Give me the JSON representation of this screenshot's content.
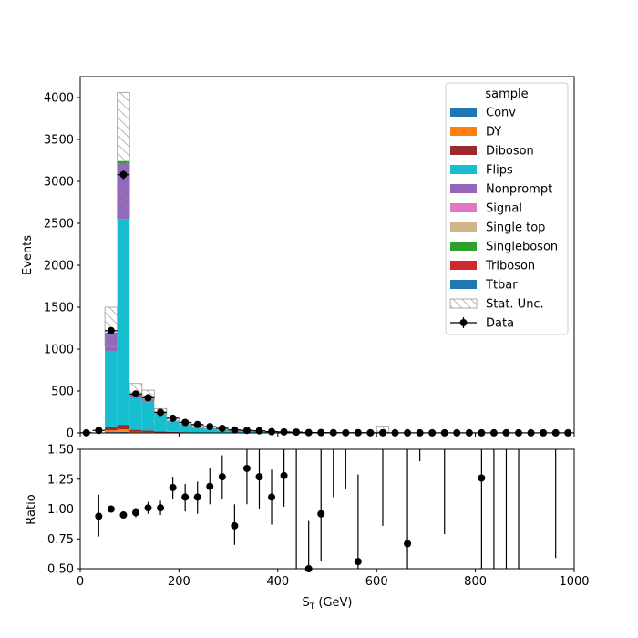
{
  "chart_data": [
    {
      "type": "bar",
      "stacked": true,
      "ylabel": "Events",
      "xlim": [
        0,
        1000
      ],
      "ylim": [
        0,
        4250
      ],
      "y_ticks": [
        0,
        500,
        1000,
        1500,
        2000,
        2500,
        3000,
        3500,
        4000
      ],
      "bin_edges": [
        0,
        25,
        50,
        75,
        100,
        125,
        150,
        175,
        200,
        225,
        250,
        275,
        300,
        325,
        350,
        375,
        400,
        425,
        450,
        475,
        500,
        525,
        550,
        575,
        600,
        625,
        650,
        675,
        700,
        725,
        750,
        775,
        800,
        825,
        850,
        875,
        900,
        925,
        950,
        975,
        1000
      ],
      "legend": {
        "title": "sample",
        "placement": "upper right",
        "entries": [
          "Conv",
          "DY",
          "Diboson",
          "Flips",
          "Nonprompt",
          "Signal",
          "Single top",
          "Singleboson",
          "Triboson",
          "Ttbar",
          "Stat. Unc.",
          "Data"
        ]
      },
      "series": [
        {
          "name": "Conv",
          "color": "#1f77b4",
          "values": [
            0,
            0,
            10,
            12,
            4,
            3,
            2,
            1,
            1,
            0,
            0,
            0,
            0,
            0,
            0,
            0,
            0,
            0,
            0,
            0,
            0,
            0,
            0,
            0,
            0,
            0,
            0,
            0,
            0,
            0,
            0,
            0,
            0,
            0,
            0,
            0,
            0,
            0,
            0,
            0
          ]
        },
        {
          "name": "DY",
          "color": "#ff7f0e",
          "values": [
            0,
            0,
            20,
            30,
            8,
            5,
            3,
            2,
            1,
            1,
            0,
            0,
            0,
            0,
            0,
            0,
            0,
            0,
            0,
            0,
            0,
            0,
            0,
            0,
            0,
            0,
            0,
            0,
            0,
            0,
            0,
            0,
            0,
            0,
            0,
            0,
            0,
            0,
            0,
            0
          ]
        },
        {
          "name": "Diboson",
          "color": "#9e2a2b",
          "values": [
            0,
            0,
            40,
            55,
            25,
            20,
            14,
            10,
            7,
            5,
            4,
            3,
            2,
            2,
            1,
            1,
            1,
            1,
            0,
            0,
            0,
            0,
            0,
            0,
            0,
            0,
            0,
            0,
            0,
            0,
            0,
            0,
            0,
            0,
            0,
            0,
            0,
            0,
            0,
            0
          ]
        },
        {
          "name": "Flips",
          "color": "#17becf",
          "values": [
            0,
            0,
            900,
            2450,
            380,
            340,
            215,
            120,
            85,
            65,
            45,
            35,
            25,
            20,
            15,
            10,
            8,
            6,
            5,
            4,
            3,
            3,
            2,
            2,
            2,
            1,
            1,
            1,
            1,
            1,
            0,
            0,
            0,
            0,
            0,
            0,
            0,
            0,
            0,
            0
          ]
        },
        {
          "name": "Nonprompt",
          "color": "#9467bd",
          "values": [
            0,
            0,
            220,
            670,
            45,
            40,
            20,
            12,
            8,
            5,
            3,
            2,
            2,
            1,
            1,
            1,
            0,
            0,
            0,
            0,
            0,
            0,
            0,
            0,
            0,
            0,
            0,
            0,
            0,
            0,
            0,
            0,
            0,
            0,
            0,
            0,
            0,
            0,
            0,
            0
          ]
        },
        {
          "name": "Signal",
          "color": "#e377c2",
          "values": [
            0,
            0,
            0,
            0,
            0,
            0,
            0,
            0,
            0,
            0,
            0,
            0,
            0,
            0,
            0,
            0,
            0,
            0,
            0,
            0,
            0,
            0,
            0,
            0,
            0,
            0,
            0,
            0,
            0,
            0,
            0,
            0,
            0,
            0,
            0,
            0,
            0,
            0,
            0,
            0
          ]
        },
        {
          "name": "Single top",
          "color": "#d2b48c",
          "values": [
            0,
            0,
            0,
            0,
            0,
            0,
            0,
            0,
            0,
            0,
            0,
            0,
            0,
            0,
            0,
            0,
            0,
            0,
            0,
            0,
            0,
            0,
            0,
            0,
            0,
            0,
            0,
            0,
            0,
            0,
            0,
            0,
            0,
            0,
            0,
            0,
            0,
            0,
            0,
            0
          ]
        },
        {
          "name": "Singleboson",
          "color": "#2ca02c",
          "values": [
            0,
            0,
            5,
            25,
            2,
            1,
            1,
            0,
            0,
            0,
            0,
            0,
            0,
            0,
            0,
            0,
            0,
            0,
            0,
            0,
            0,
            0,
            0,
            0,
            0,
            0,
            0,
            0,
            0,
            0,
            0,
            0,
            0,
            0,
            0,
            0,
            0,
            0,
            0,
            0
          ]
        },
        {
          "name": "Triboson",
          "color": "#d62728",
          "values": [
            0,
            0,
            0,
            0,
            0,
            0,
            0,
            0,
            0,
            0,
            0,
            0,
            0,
            0,
            0,
            0,
            0,
            0,
            0,
            0,
            0,
            0,
            0,
            0,
            0,
            0,
            0,
            0,
            0,
            0,
            0,
            0,
            0,
            0,
            0,
            0,
            0,
            0,
            0,
            0
          ]
        },
        {
          "name": "Ttbar",
          "color": "#1f77b4",
          "values": [
            0,
            0,
            0,
            0,
            0,
            0,
            0,
            0,
            0,
            0,
            0,
            0,
            0,
            0,
            0,
            0,
            0,
            0,
            0,
            0,
            0,
            0,
            0,
            0,
            0,
            0,
            0,
            0,
            0,
            0,
            0,
            0,
            0,
            0,
            0,
            0,
            0,
            0,
            0,
            0
          ]
        }
      ],
      "stat_unc": {
        "name": "Stat. Unc.",
        "hatch_color": "#999999",
        "down": [
          0,
          0,
          1030,
          2550,
          460,
          390,
          230,
          140,
          100,
          75,
          52,
          40,
          28,
          22,
          16,
          12,
          9,
          7,
          5,
          4,
          3,
          3,
          2,
          2,
          1,
          1,
          1,
          1,
          1,
          1,
          0,
          0,
          0,
          0,
          0,
          0,
          0,
          0,
          0,
          0
        ],
        "up": [
          0,
          0,
          1500,
          4060,
          590,
          510,
          290,
          175,
          125,
          92,
          68,
          50,
          36,
          28,
          20,
          15,
          12,
          9,
          7,
          6,
          5,
          4,
          3,
          3,
          80,
          2,
          2,
          1,
          1,
          1,
          1,
          1,
          1,
          1,
          1,
          1,
          1,
          1,
          1,
          1
        ]
      },
      "data": {
        "name": "Data",
        "color": "#000000",
        "x": [
          12.5,
          37.5,
          62.5,
          87.5,
          112.5,
          137.5,
          162.5,
          187.5,
          212.5,
          237.5,
          262.5,
          287.5,
          312.5,
          337.5,
          362.5,
          387.5,
          412.5,
          437.5,
          462.5,
          487.5,
          512.5,
          537.5,
          562.5,
          587.5,
          612.5,
          637.5,
          662.5,
          687.5,
          712.5,
          737.5,
          762.5,
          787.5,
          812.5,
          837.5,
          862.5,
          887.5,
          912.5,
          937.5,
          962.5,
          987.5
        ],
        "y": [
          2,
          30,
          1220,
          3080,
          465,
          420,
          245,
          175,
          125,
          100,
          75,
          55,
          35,
          30,
          25,
          15,
          12,
          10,
          4,
          4,
          3,
          2,
          3,
          2,
          2,
          1,
          1,
          1,
          1,
          1,
          1,
          1,
          1,
          1,
          1,
          1,
          1,
          1,
          1,
          1
        ],
        "yerr": [
          1,
          5,
          35,
          55,
          22,
          20,
          16,
          13,
          11,
          10,
          9,
          7,
          6,
          5,
          5,
          4,
          3,
          3,
          2,
          2,
          2,
          1,
          2,
          1,
          1,
          1,
          1,
          1,
          1,
          1,
          1,
          1,
          1,
          1,
          1,
          1,
          1,
          1,
          1,
          1
        ]
      }
    },
    {
      "type": "scatter",
      "xlabel_main": "S",
      "xlabel_sub": "T",
      "xlabel_unit": " (GeV)",
      "ylabel": "Ratio",
      "xlim": [
        0,
        1000
      ],
      "ylim": [
        0.5,
        1.5
      ],
      "reference_line": 1.0,
      "x_ticks": [
        0,
        200,
        400,
        600,
        800,
        1000
      ],
      "y_ticks": [
        "0.50",
        "0.75",
        "1.00",
        "1.25",
        "1.50"
      ],
      "points": {
        "x": [
          37.5,
          62.5,
          87.5,
          112.5,
          137.5,
          162.5,
          187.5,
          212.5,
          237.5,
          262.5,
          287.5,
          312.5,
          337.5,
          362.5,
          387.5,
          412.5,
          462.5,
          487.5,
          562.5,
          662.5,
          812.5
        ],
        "y": [
          0.94,
          1.0,
          0.95,
          0.97,
          1.01,
          1.01,
          1.18,
          1.1,
          1.1,
          1.19,
          1.27,
          0.86,
          1.34,
          1.27,
          1.1,
          1.28,
          0.5,
          0.96,
          0.56,
          0.71,
          1.26
        ],
        "ylow": [
          0.77,
          0.98,
          0.93,
          0.93,
          0.96,
          0.95,
          1.08,
          0.98,
          0.96,
          1.04,
          1.08,
          0.7,
          1.04,
          1.0,
          0.87,
          1.02,
          0.11,
          0.56,
          0.12,
          0.5,
          0.5
        ],
        "yhigh": [
          1.12,
          1.02,
          0.97,
          1.01,
          1.06,
          1.07,
          1.27,
          1.21,
          1.23,
          1.34,
          1.45,
          1.04,
          1.5,
          1.5,
          1.33,
          1.5,
          0.9,
          1.5,
          1.29,
          1.5,
          1.5
        ]
      },
      "error_only": [
        {
          "x": 437.5,
          "ylow": 0.5,
          "yhigh": 1.5
        },
        {
          "x": 512.5,
          "ylow": 1.1,
          "yhigh": 1.5
        },
        {
          "x": 537.5,
          "ylow": 1.17,
          "yhigh": 1.5
        },
        {
          "x": 612.5,
          "ylow": 0.86,
          "yhigh": 1.5
        },
        {
          "x": 687.5,
          "ylow": 1.4,
          "yhigh": 1.5
        },
        {
          "x": 737.5,
          "ylow": 0.79,
          "yhigh": 1.5
        },
        {
          "x": 837.5,
          "ylow": 0.5,
          "yhigh": 1.5
        },
        {
          "x": 862.5,
          "ylow": 0.5,
          "yhigh": 1.5
        },
        {
          "x": 887.5,
          "ylow": 0.5,
          "yhigh": 1.5
        },
        {
          "x": 962.5,
          "ylow": 0.59,
          "yhigh": 1.5
        }
      ]
    }
  ]
}
